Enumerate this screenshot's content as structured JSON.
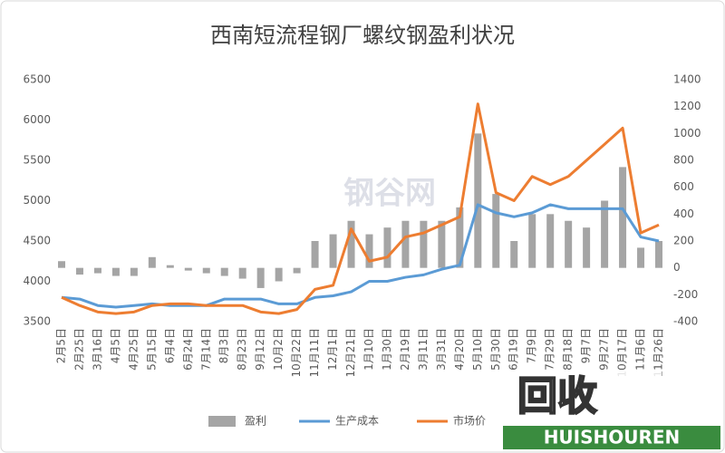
{
  "chart_data": {
    "type": "combo",
    "title": "西南短流程钢厂螺纹钢盈利状况",
    "categories": [
      "2月5日",
      "2月25日",
      "3月16日",
      "4月5日",
      "4月25日",
      "5月15日",
      "6月4日",
      "6月24日",
      "7月14日",
      "8月3日",
      "8月23日",
      "9月12日",
      "10月2日",
      "10月22日",
      "11月11日",
      "12月1日",
      "12月21日",
      "1月10日",
      "1月30日",
      "2月19日",
      "3月11日",
      "3月31日",
      "4月20日",
      "5月10日",
      "5月30日",
      "6月19日",
      "7月9日",
      "7月29日",
      "8月18日",
      "9月7日",
      "9月27日",
      "10月17日",
      "11月6日",
      "11月26日"
    ],
    "series": [
      {
        "name": "盈利",
        "kind": "bar",
        "axis": "y2",
        "color": "#a5a5a5",
        "values": [
          50,
          -50,
          -40,
          -60,
          -60,
          80,
          20,
          -20,
          -40,
          -60,
          -80,
          -150,
          -100,
          -40,
          200,
          250,
          350,
          250,
          300,
          350,
          350,
          350,
          450,
          1000,
          550,
          200,
          400,
          400,
          350,
          300,
          500,
          750,
          150,
          200
        ]
      },
      {
        "name": "生产成本",
        "kind": "line",
        "color": "#5b9bd5",
        "values": [
          3800,
          3780,
          3700,
          3680,
          3700,
          3720,
          3700,
          3700,
          3700,
          3780,
          3780,
          3780,
          3720,
          3720,
          3800,
          3820,
          3870,
          4000,
          4000,
          4050,
          4080,
          4150,
          4200,
          4950,
          4850,
          4800,
          4850,
          4950,
          4900,
          4900,
          4900,
          4900,
          4550,
          4500
        ]
      },
      {
        "name": "市场价",
        "kind": "line",
        "color": "#ed7d31",
        "values": [
          3800,
          3700,
          3620,
          3600,
          3620,
          3700,
          3720,
          3720,
          3700,
          3700,
          3700,
          3620,
          3600,
          3650,
          3900,
          3950,
          4650,
          4250,
          4300,
          4550,
          4600,
          4700,
          4800,
          6200,
          5100,
          5000,
          5300,
          5200,
          5300,
          5500,
          5700,
          5900,
          4600,
          4700
        ]
      }
    ],
    "ylim": [
      3500,
      6500
    ],
    "yticks": [
      3500,
      4000,
      4500,
      5000,
      5500,
      6000,
      6500
    ],
    "y2lim": [
      -400,
      1400
    ],
    "y2ticks": [
      -400,
      -200,
      0,
      200,
      400,
      600,
      800,
      1000,
      1200,
      1400
    ],
    "legend": "bottom"
  },
  "watermarks": {
    "center": "钢谷网",
    "logo": "回收",
    "brand": "HUISHOUREN"
  }
}
